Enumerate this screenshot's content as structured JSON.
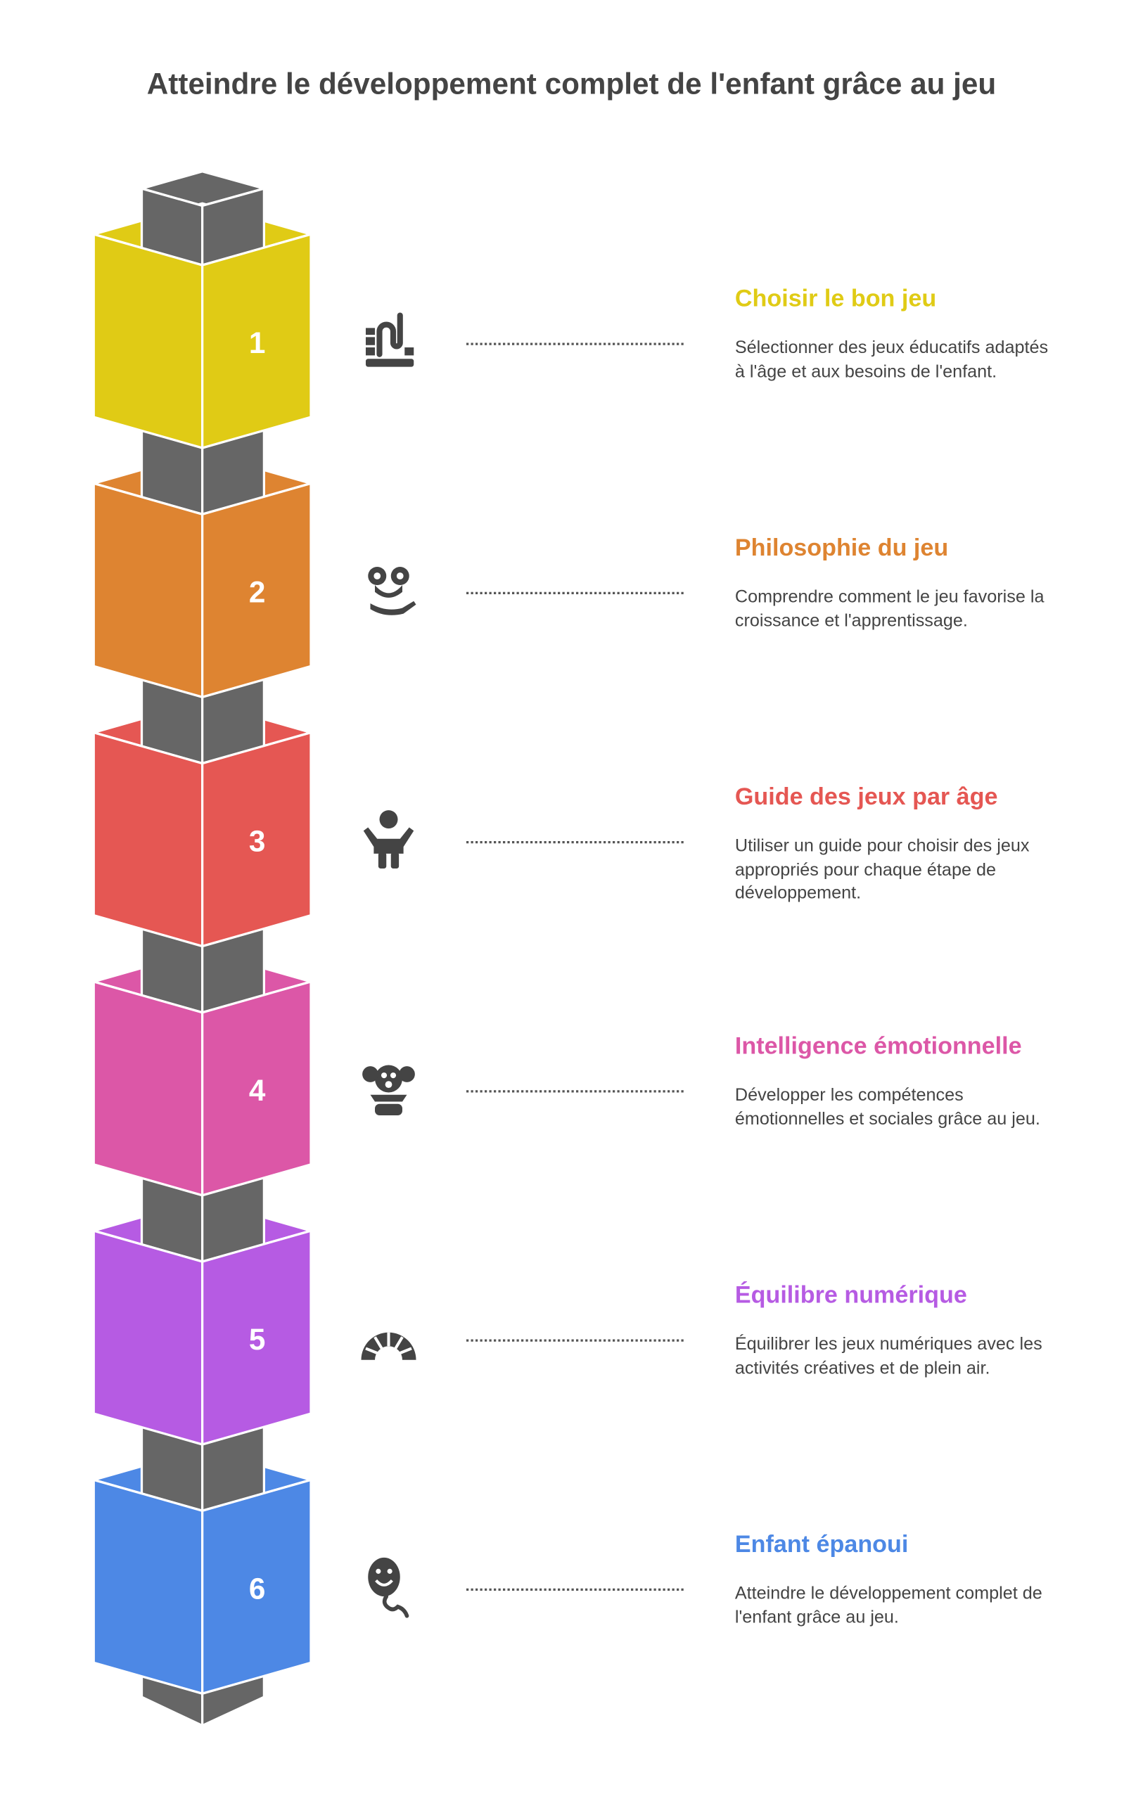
{
  "title": "Atteindre le développement complet de l'enfant grâce au jeu",
  "colors": {
    "pillar": "#666666",
    "text": "#444444"
  },
  "steps": [
    {
      "number": "1",
      "title": "Choisir le bon jeu",
      "description": "Sélectionner des jeux éducatifs adaptés à l'âge et aux besoins de l'enfant.",
      "color": "#E0CB15",
      "icon": "abacus-toy-icon"
    },
    {
      "number": "2",
      "title": "Philosophie du jeu",
      "description": "Comprendre comment le jeu favorise la croissance et l'apprentissage.",
      "color": "#DE8431",
      "icon": "playful-face-hand-icon"
    },
    {
      "number": "3",
      "title": "Guide des jeux par âge",
      "description": "Utiliser un guide pour choisir des jeux appropriés pour chaque étape de développement.",
      "color": "#E55753",
      "icon": "child-icon"
    },
    {
      "number": "4",
      "title": "Intelligence émotionnelle",
      "description": "Développer les compétences émotionnelles et sociales grâce au jeu.",
      "color": "#DC57A7",
      "icon": "clown-icon"
    },
    {
      "number": "5",
      "title": "Équilibre numérique",
      "description": "Équilibrer les jeux numériques avec les activités créatives et de plein air.",
      "color": "#B65BE3",
      "icon": "rainbow-arch-icon"
    },
    {
      "number": "6",
      "title": "Enfant épanoui",
      "description": "Atteindre le développement complet de l'enfant grâce au jeu.",
      "color": "#4D88E5",
      "icon": "smiling-balloon-icon"
    }
  ]
}
